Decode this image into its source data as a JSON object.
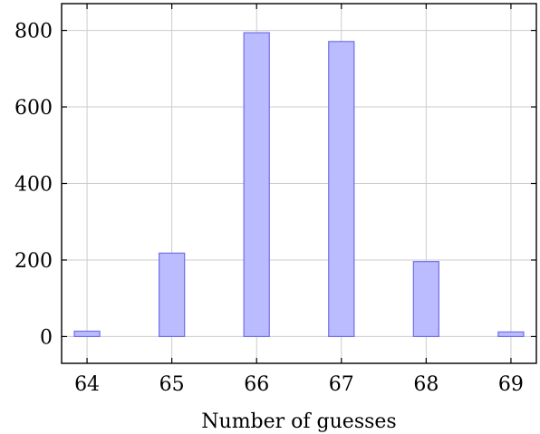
{
  "chart_data": {
    "type": "bar",
    "title": "",
    "xlabel": "Number of guesses",
    "ylabel": "",
    "x": [
      64,
      65,
      66,
      67,
      68,
      69
    ],
    "values": [
      14,
      218,
      794,
      771,
      196,
      12
    ],
    "xlim": [
      63.7,
      69.3
    ],
    "ylim": [
      -70,
      870
    ],
    "yticks": [
      0,
      200,
      400,
      600,
      800
    ],
    "xticks": [
      64,
      65,
      66,
      67,
      68,
      69
    ],
    "grid": true,
    "bar_fill": "#bbbbff",
    "bar_stroke": "#6f6fe8",
    "grid_color": "#cccccc",
    "axis_color": "#000000"
  }
}
